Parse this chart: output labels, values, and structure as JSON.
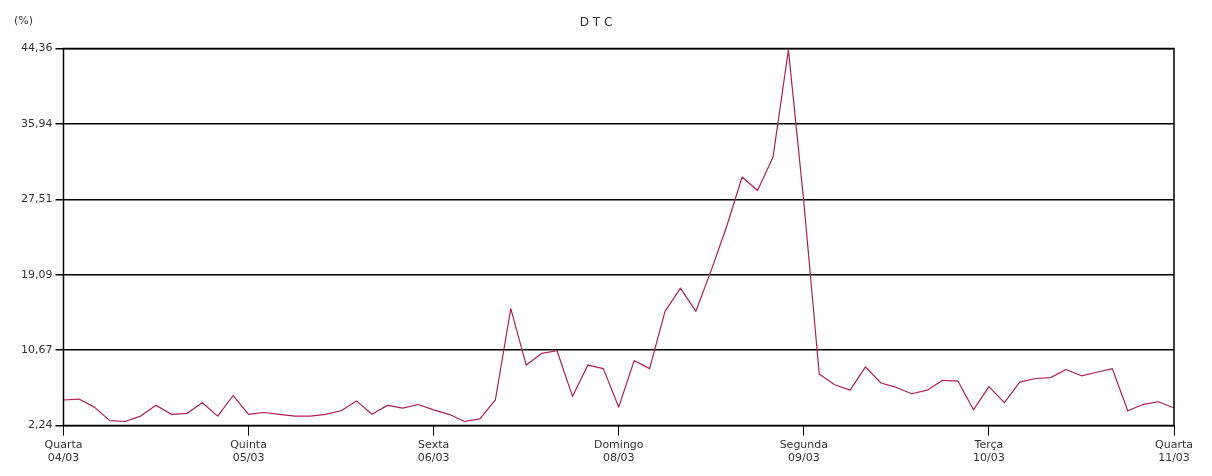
{
  "chart_data": {
    "type": "line",
    "title": "D T C",
    "ylabel": "(%)",
    "categories": [
      "Quarta 04/03",
      null,
      null,
      null,
      null,
      null,
      null,
      null,
      null,
      null,
      null,
      null,
      "Quinta 05/03",
      null,
      null,
      null,
      null,
      null,
      null,
      null,
      null,
      null,
      null,
      null,
      "Sexta 06/03",
      null,
      null,
      null,
      null,
      null,
      null,
      null,
      null,
      null,
      null,
      null,
      "Domingo 08/03",
      null,
      null,
      null,
      null,
      null,
      null,
      null,
      null,
      null,
      null,
      null,
      "Segunda 09/03",
      null,
      null,
      null,
      null,
      null,
      null,
      null,
      null,
      null,
      null,
      null,
      "Terça 10/03",
      null,
      null,
      null,
      null,
      null,
      null,
      null,
      null,
      null,
      null,
      null,
      "Quarta 11/03"
    ],
    "ylim": [
      2.24,
      44.36
    ],
    "yticks": [
      {
        "value": 2.24,
        "label": "2,24"
      },
      {
        "value": 10.67,
        "label": "10,67"
      },
      {
        "value": 19.09,
        "label": "19,09"
      },
      {
        "value": 27.51,
        "label": "27,51"
      },
      {
        "value": 35.94,
        "label": "35,94"
      },
      {
        "value": 44.36,
        "label": "44,36"
      }
    ],
    "grid": "y",
    "marker": "none",
    "line_style": "solid",
    "series": [
      {
        "color": "#b0204f",
        "values": [
          5.1,
          5.2,
          4.3,
          2.8,
          2.7,
          3.3,
          4.5,
          3.5,
          3.6,
          4.8,
          3.3,
          5.6,
          3.5,
          3.7,
          3.5,
          3.3,
          3.3,
          3.5,
          3.9,
          5.0,
          3.5,
          4.5,
          4.2,
          4.6,
          4.0,
          3.5,
          2.7,
          3.0,
          5.1,
          15.3,
          9.0,
          10.3,
          10.6,
          5.5,
          9.0,
          8.6,
          4.3,
          9.5,
          8.6,
          15.0,
          17.6,
          15.0,
          19.6,
          24.5,
          30.0,
          28.5,
          32.2,
          44.2,
          27.2,
          8.0,
          6.8,
          6.2,
          8.8,
          7.0,
          6.5,
          5.8,
          6.2,
          7.3,
          7.2,
          4.0,
          6.6,
          4.8,
          7.1,
          7.5,
          7.6,
          8.5,
          7.8,
          8.2,
          8.6,
          3.9,
          4.6,
          4.9,
          4.2
        ]
      }
    ]
  }
}
